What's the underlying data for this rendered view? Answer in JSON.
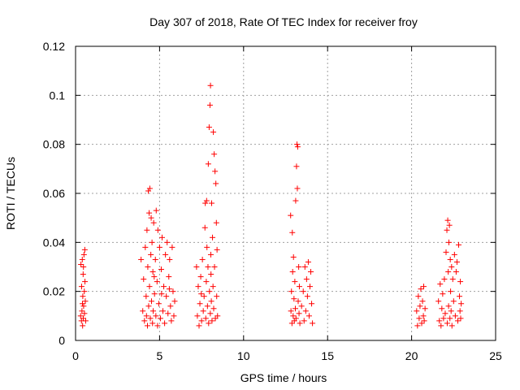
{
  "chart_data": {
    "type": "scatter",
    "title": "Day 307 of 2018, Rate Of TEC Index for receiver froy",
    "xlabel": "GPS time / hours",
    "ylabel": "ROTI / TECUs",
    "xlim": [
      0,
      25
    ],
    "ylim": [
      0,
      0.12
    ],
    "xticks": [
      0,
      5,
      10,
      15,
      20,
      25
    ],
    "xtick_labels": [
      "0",
      "5",
      "10",
      "15",
      "20",
      "25"
    ],
    "yticks": [
      0,
      0.02,
      0.04,
      0.06,
      0.08,
      0.1,
      0.12
    ],
    "ytick_labels": [
      "0",
      "0.02",
      "0.04",
      "0.06",
      "0.08",
      "0.1",
      "0.12"
    ],
    "grid": true,
    "marker": "+",
    "color": "#ff0000",
    "series": [
      {
        "name": "ROTI",
        "points": [
          [
            0.3,
            0.01
          ],
          [
            0.32,
            0.031
          ],
          [
            0.35,
            0.008
          ],
          [
            0.36,
            0.022
          ],
          [
            0.38,
            0.012
          ],
          [
            0.4,
            0.033
          ],
          [
            0.42,
            0.006
          ],
          [
            0.43,
            0.018
          ],
          [
            0.45,
            0.027
          ],
          [
            0.46,
            0.009
          ],
          [
            0.48,
            0.014
          ],
          [
            0.5,
            0.035
          ],
          [
            0.52,
            0.02
          ],
          [
            0.53,
            0.011
          ],
          [
            0.55,
            0.037
          ],
          [
            0.56,
            0.024
          ],
          [
            0.58,
            0.016
          ],
          [
            0.6,
            0.008
          ],
          [
            0.41,
            0.015
          ],
          [
            0.47,
            0.03
          ],
          [
            3.9,
            0.033
          ],
          [
            4.0,
            0.012
          ],
          [
            4.05,
            0.025
          ],
          [
            4.1,
            0.008
          ],
          [
            4.15,
            0.038
          ],
          [
            4.2,
            0.018
          ],
          [
            4.25,
            0.045
          ],
          [
            4.28,
            0.006
          ],
          [
            4.3,
            0.03
          ],
          [
            4.33,
            0.061
          ],
          [
            4.35,
            0.014
          ],
          [
            4.38,
            0.052
          ],
          [
            4.4,
            0.022
          ],
          [
            4.42,
            0.062
          ],
          [
            4.45,
            0.009
          ],
          [
            4.48,
            0.035
          ],
          [
            4.5,
            0.05
          ],
          [
            4.52,
            0.016
          ],
          [
            4.55,
            0.04
          ],
          [
            4.58,
            0.007
          ],
          [
            4.6,
            0.028
          ],
          [
            4.62,
            0.012
          ],
          [
            4.65,
            0.048
          ],
          [
            4.7,
            0.019
          ],
          [
            4.75,
            0.033
          ],
          [
            4.78,
            0.01
          ],
          [
            4.8,
            0.053
          ],
          [
            4.85,
            0.024
          ],
          [
            4.88,
            0.006
          ],
          [
            4.9,
            0.045
          ],
          [
            4.95,
            0.015
          ],
          [
            5.0,
            0.038
          ],
          [
            5.05,
            0.009
          ],
          [
            5.1,
            0.029
          ],
          [
            5.15,
            0.042
          ],
          [
            5.2,
            0.012
          ],
          [
            5.25,
            0.022
          ],
          [
            5.3,
            0.007
          ],
          [
            5.35,
            0.035
          ],
          [
            5.4,
            0.018
          ],
          [
            5.45,
            0.04
          ],
          [
            5.5,
            0.011
          ],
          [
            5.55,
            0.026
          ],
          [
            5.6,
            0.033
          ],
          [
            5.65,
            0.014
          ],
          [
            5.7,
            0.008
          ],
          [
            5.75,
            0.038
          ],
          [
            5.8,
            0.02
          ],
          [
            5.85,
            0.01
          ],
          [
            5.9,
            0.016
          ],
          [
            4.22,
            0.01
          ],
          [
            4.68,
            0.026
          ],
          [
            5.12,
            0.019
          ],
          [
            5.58,
            0.021
          ],
          [
            7.2,
            0.03
          ],
          [
            7.25,
            0.01
          ],
          [
            7.3,
            0.022
          ],
          [
            7.35,
            0.006
          ],
          [
            7.4,
            0.015
          ],
          [
            7.45,
            0.026
          ],
          [
            7.5,
            0.008
          ],
          [
            7.55,
            0.033
          ],
          [
            7.6,
            0.012
          ],
          [
            7.65,
            0.018
          ],
          [
            7.7,
            0.046
          ],
          [
            7.72,
            0.056
          ],
          [
            7.75,
            0.009
          ],
          [
            7.78,
            0.024
          ],
          [
            7.8,
            0.057
          ],
          [
            7.82,
            0.038
          ],
          [
            7.85,
            0.014
          ],
          [
            7.88,
            0.03
          ],
          [
            7.9,
            0.072
          ],
          [
            7.92,
            0.007
          ],
          [
            7.95,
            0.087
          ],
          [
            7.97,
            0.02
          ],
          [
            8.0,
            0.096
          ],
          [
            8.02,
            0.011
          ],
          [
            8.03,
            0.104
          ],
          [
            8.05,
            0.035
          ],
          [
            8.08,
            0.016
          ],
          [
            8.1,
            0.056
          ],
          [
            8.12,
            0.008
          ],
          [
            8.15,
            0.042
          ],
          [
            8.18,
            0.022
          ],
          [
            8.2,
            0.085
          ],
          [
            8.22,
            0.013
          ],
          [
            8.25,
            0.076
          ],
          [
            8.27,
            0.03
          ],
          [
            8.3,
            0.069
          ],
          [
            8.32,
            0.009
          ],
          [
            8.35,
            0.064
          ],
          [
            8.38,
            0.048
          ],
          [
            8.4,
            0.018
          ],
          [
            8.42,
            0.037
          ],
          [
            8.45,
            0.01
          ],
          [
            7.48,
            0.019
          ],
          [
            8.06,
            0.027
          ],
          [
            12.8,
            0.051
          ],
          [
            12.82,
            0.012
          ],
          [
            12.85,
            0.02
          ],
          [
            12.88,
            0.007
          ],
          [
            12.9,
            0.044
          ],
          [
            12.92,
            0.028
          ],
          [
            12.95,
            0.01
          ],
          [
            12.97,
            0.034
          ],
          [
            13.0,
            0.017
          ],
          [
            13.02,
            0.008
          ],
          [
            13.05,
            0.024
          ],
          [
            13.08,
            0.013
          ],
          [
            13.1,
            0.057
          ],
          [
            13.12,
            0.009
          ],
          [
            13.15,
            0.071
          ],
          [
            13.18,
            0.08
          ],
          [
            13.2,
            0.062
          ],
          [
            13.22,
            0.079
          ],
          [
            13.25,
            0.016
          ],
          [
            13.28,
            0.03
          ],
          [
            13.3,
            0.011
          ],
          [
            13.32,
            0.022
          ],
          [
            13.35,
            0.007
          ],
          [
            13.45,
            0.014
          ],
          [
            13.55,
            0.02
          ],
          [
            13.6,
            0.008
          ],
          [
            13.65,
            0.03
          ],
          [
            13.7,
            0.012
          ],
          [
            13.75,
            0.025
          ],
          [
            13.8,
            0.018
          ],
          [
            13.85,
            0.032
          ],
          [
            13.9,
            0.01
          ],
          [
            13.95,
            0.022
          ],
          [
            14.0,
            0.028
          ],
          [
            14.05,
            0.015
          ],
          [
            14.1,
            0.007
          ],
          [
            20.3,
            0.012
          ],
          [
            20.35,
            0.006
          ],
          [
            20.4,
            0.018
          ],
          [
            20.45,
            0.009
          ],
          [
            20.5,
            0.014
          ],
          [
            20.55,
            0.021
          ],
          [
            20.6,
            0.007
          ],
          [
            20.65,
            0.016
          ],
          [
            20.7,
            0.01
          ],
          [
            20.72,
            0.022
          ],
          [
            20.75,
            0.008
          ],
          [
            20.8,
            0.013
          ],
          [
            21.6,
            0.016
          ],
          [
            21.65,
            0.008
          ],
          [
            21.7,
            0.023
          ],
          [
            21.75,
            0.006
          ],
          [
            21.8,
            0.013
          ],
          [
            21.85,
            0.019
          ],
          [
            21.9,
            0.009
          ],
          [
            21.95,
            0.025
          ],
          [
            22.0,
            0.011
          ],
          [
            22.05,
            0.036
          ],
          [
            22.1,
            0.045
          ],
          [
            22.12,
            0.007
          ],
          [
            22.15,
            0.049
          ],
          [
            22.18,
            0.028
          ],
          [
            22.2,
            0.014
          ],
          [
            22.22,
            0.04
          ],
          [
            22.25,
            0.047
          ],
          [
            22.28,
            0.009
          ],
          [
            22.3,
            0.033
          ],
          [
            22.32,
            0.02
          ],
          [
            22.35,
            0.012
          ],
          [
            22.38,
            0.03
          ],
          [
            22.4,
            0.006
          ],
          [
            22.45,
            0.025
          ],
          [
            22.5,
            0.016
          ],
          [
            22.55,
            0.035
          ],
          [
            22.6,
            0.01
          ],
          [
            22.65,
            0.028
          ],
          [
            22.7,
            0.032
          ],
          [
            22.75,
            0.008
          ],
          [
            22.8,
            0.039
          ],
          [
            22.85,
            0.018
          ],
          [
            22.88,
            0.012
          ],
          [
            22.9,
            0.024
          ],
          [
            22.92,
            0.009
          ],
          [
            22.95,
            0.015
          ]
        ]
      }
    ]
  }
}
